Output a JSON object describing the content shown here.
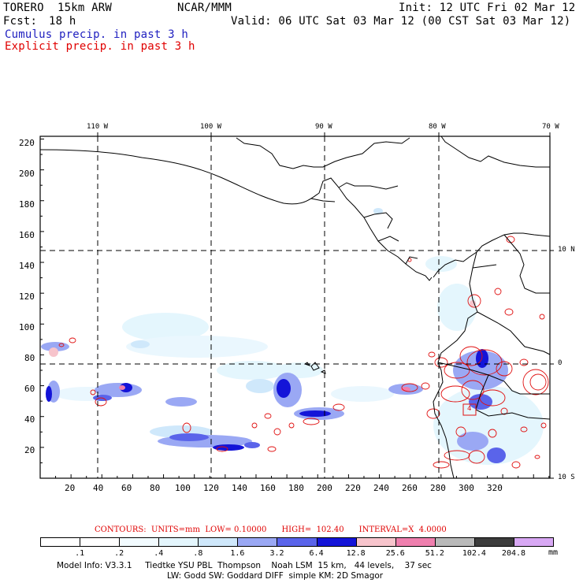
{
  "header": {
    "model": "TORERO  15km ARW",
    "center": "NCAR/MMM",
    "init": "Init: 12 UTC Fri 02 Mar 12",
    "fcst_label": "Fcst:",
    "fcst_value": "18 h",
    "valid": "Valid: 06 UTC Sat 03 Mar 12 (00 CST Sat 03 Mar 12)",
    "cumulus": "Cumulus precip. in past 3 h",
    "explicit": "Explicit precip. in past 3 h"
  },
  "colors": {
    "cumulus_text": "#2020c0",
    "explicit_text": "#e00000",
    "contour": "#e01010",
    "coast": "#000000",
    "grid": "#000000"
  },
  "map": {
    "top_labels": [
      "110 W",
      "100 W",
      "90 W",
      "80 W",
      "70 W"
    ],
    "right_labels": [
      "10 N",
      "0",
      "10 S"
    ],
    "left_ticks": [
      "220",
      "200",
      "180",
      "160",
      "140",
      "120",
      "100",
      "80",
      "60",
      "40",
      "20"
    ],
    "bottom_ticks": [
      "20",
      "40",
      "60",
      "80",
      "100",
      "120",
      "140",
      "160",
      "180",
      "200",
      "220",
      "240",
      "260",
      "280",
      "300",
      "320"
    ],
    "box_label": "4"
  },
  "contours_info": {
    "text": "CONTOURS:  UNITS=mm  LOW= 0.10000      HIGH=  102.40      INTERVAL=X  4.0000"
  },
  "colorbar": {
    "levels": [
      ".1",
      ".2",
      ".4",
      ".8",
      "1.6",
      "3.2",
      "6.4",
      "12.8",
      "25.6",
      "51.2",
      "102.4",
      "204.8"
    ],
    "units": "mm",
    "colors": [
      "#ffffff",
      "#ffffff",
      "#f2fbff",
      "#e4f6fd",
      "#cfe8fb",
      "#9aa8f4",
      "#5a64ea",
      "#1414d8",
      "#f7c4cc",
      "#ef7fae",
      "#b9b9b9",
      "#3c3c3c",
      "#d8a8f4"
    ]
  },
  "footer": {
    "line1": "Model Info: V3.3.1     Tiedtke YSU PBL  Thompson    Noah LSM  15 km,   44 levels,    37 sec",
    "line2": "LW: Godd SW: Goddard DIFF  simple KM: 2D Smagor"
  }
}
